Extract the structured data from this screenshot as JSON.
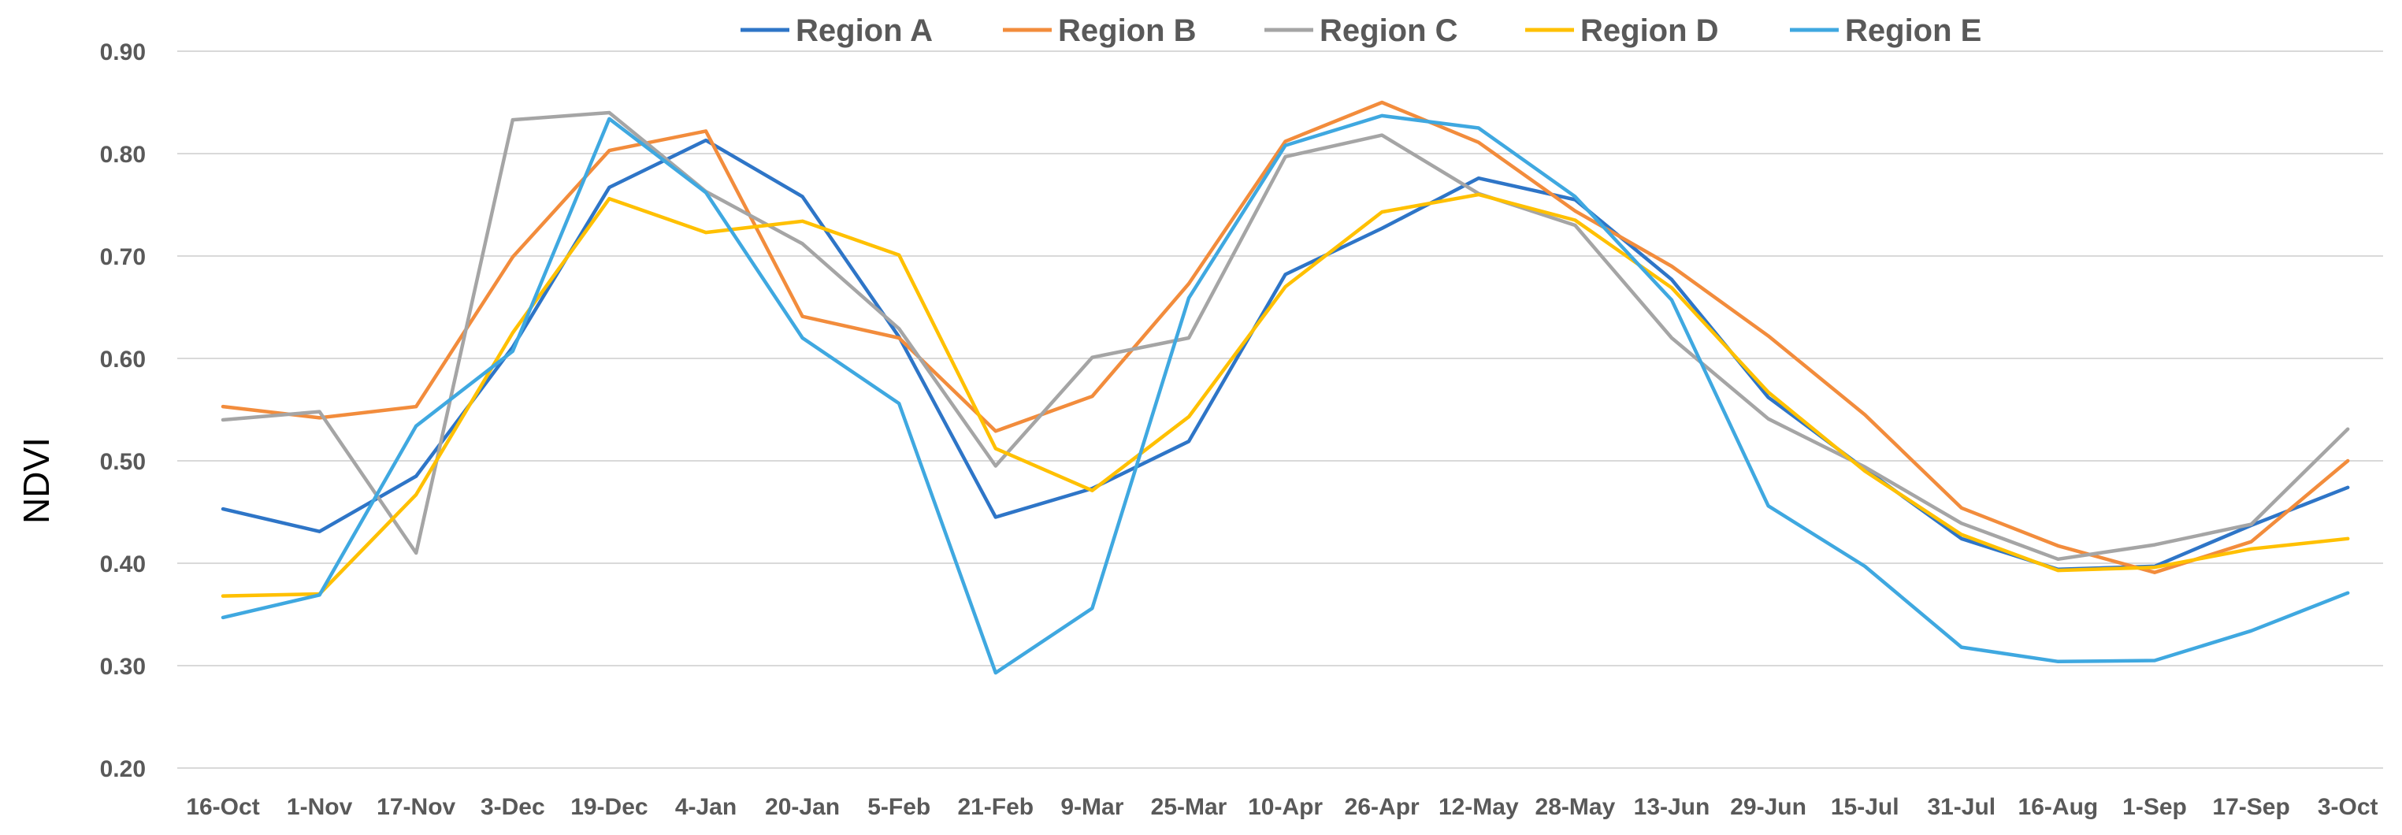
{
  "chart_data": {
    "type": "line",
    "title": "",
    "xlabel": "",
    "ylabel": "NDVI",
    "ylim": [
      0.2,
      0.9
    ],
    "yticks": [
      "0.20",
      "0.30",
      "0.40",
      "0.50",
      "0.60",
      "0.70",
      "0.80",
      "0.90"
    ],
    "grid": true,
    "legend_position": "top",
    "categories": [
      "16-Oct",
      "1-Nov",
      "17-Nov",
      "3-Dec",
      "19-Dec",
      "4-Jan",
      "20-Jan",
      "5-Feb",
      "21-Feb",
      "9-Mar",
      "25-Mar",
      "10-Apr",
      "26-Apr",
      "12-May",
      "28-May",
      "13-Jun",
      "29-Jun",
      "15-Jul",
      "31-Jul",
      "16-Aug",
      "1-Sep",
      "17-Sep",
      "3-Oct"
    ],
    "series": [
      {
        "name": "Region A",
        "color": "#2E75C7",
        "values": [
          0.453,
          0.431,
          0.485,
          0.611,
          0.767,
          0.813,
          0.758,
          0.621,
          0.445,
          0.473,
          0.519,
          0.682,
          0.727,
          0.776,
          0.755,
          0.677,
          0.562,
          0.492,
          0.424,
          0.394,
          0.397,
          0.437,
          0.474
        ]
      },
      {
        "name": "Region B",
        "color": "#F28C3C",
        "values": [
          0.553,
          0.542,
          0.553,
          0.699,
          0.803,
          0.822,
          0.641,
          0.62,
          0.529,
          0.563,
          0.673,
          0.812,
          0.85,
          0.811,
          0.744,
          0.69,
          0.622,
          0.545,
          0.454,
          0.417,
          0.391,
          0.421,
          0.5
        ]
      },
      {
        "name": "Region C",
        "color": "#A5A5A5",
        "values": [
          0.54,
          0.548,
          0.41,
          0.833,
          0.84,
          0.763,
          0.712,
          0.629,
          0.495,
          0.601,
          0.62,
          0.797,
          0.818,
          0.761,
          0.73,
          0.62,
          0.541,
          0.494,
          0.439,
          0.404,
          0.418,
          0.438,
          0.531
        ]
      },
      {
        "name": "Region D",
        "color": "#FFC000",
        "values": [
          0.368,
          0.37,
          0.467,
          0.625,
          0.756,
          0.723,
          0.734,
          0.701,
          0.512,
          0.471,
          0.543,
          0.67,
          0.743,
          0.76,
          0.735,
          0.669,
          0.567,
          0.49,
          0.428,
          0.393,
          0.396,
          0.414,
          0.424
        ]
      },
      {
        "name": "Region E",
        "color": "#3FA8E0",
        "values": [
          0.347,
          0.369,
          0.534,
          0.607,
          0.834,
          0.762,
          0.62,
          0.556,
          0.293,
          0.356,
          0.659,
          0.808,
          0.837,
          0.825,
          0.758,
          0.657,
          0.456,
          0.397,
          0.318,
          0.304,
          0.305,
          0.334,
          0.371
        ]
      }
    ]
  }
}
